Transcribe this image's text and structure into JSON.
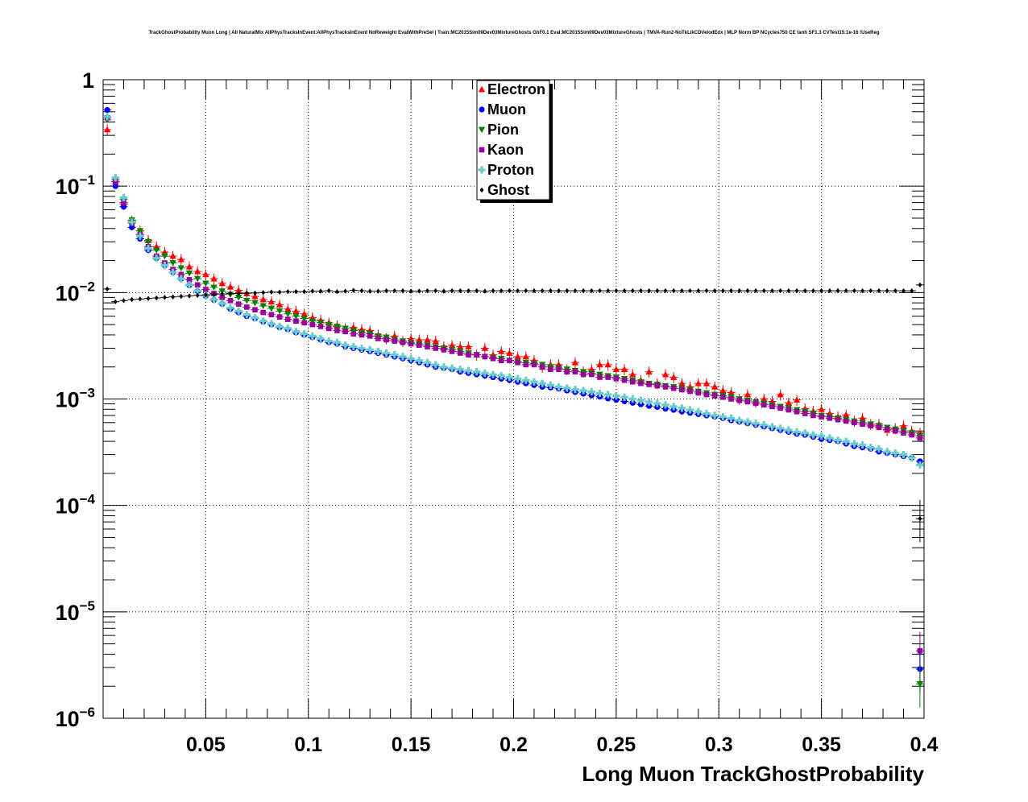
{
  "chart_data": {
    "type": "scatter",
    "title": "TrackGhostProbability Muon Long | All NaturalMix AllPhysTracksInEvent:AllPhysTracksInEvent NoReweight EvalWithPreSel | Train:MC2015Sim09Dev03MixtureGhosts GhF0.1 Eval:MC2015Sim09Dev03MixtureGhosts | TMVA-Run2-NoTkLikCDVelodEdx | MLP Norm BP NCycles750 CE tanh SF1.3 CVTest15:1e-16 !UseReg",
    "xlabel": "Long Muon TrackGhostProbability",
    "ylabel": "",
    "xlim": [
      0.0,
      0.4
    ],
    "ylim": [
      1e-06,
      1
    ],
    "yscale": "log",
    "grid": true,
    "legend_position": "top-center",
    "x_ticks": [
      "0.05",
      "0.1",
      "0.15",
      "0.2",
      "0.25",
      "0.3",
      "0.35",
      "0.4"
    ],
    "y_ticks": [
      {
        "base": "1",
        "exp": ""
      },
      {
        "base": "10",
        "exp": "−1"
      },
      {
        "base": "10",
        "exp": "−2"
      },
      {
        "base": "10",
        "exp": "−3"
      },
      {
        "base": "10",
        "exp": "−4"
      },
      {
        "base": "10",
        "exp": "−5"
      },
      {
        "base": "10",
        "exp": "−6"
      }
    ],
    "bins": {
      "start": 0.0,
      "width": 0.004,
      "count": 100
    },
    "series": [
      {
        "name": "Electron",
        "color": "#ff0000",
        "marker": "triangle-up",
        "values": [
          0.34,
          0.11,
          0.068,
          0.047,
          0.038,
          0.031,
          0.027,
          0.024,
          0.022,
          0.0205,
          0.0175,
          0.0158,
          0.0148,
          0.0135,
          0.0122,
          0.0113,
          0.0105,
          0.0098,
          0.0092,
          0.0086,
          0.0082,
          0.0077,
          0.007,
          0.0067,
          0.0063,
          0.0058,
          0.0055,
          0.0052,
          0.0049,
          0.0046,
          0.0047,
          0.0045,
          0.0044,
          0.004,
          0.0037,
          0.0039,
          0.0035,
          0.0037,
          0.0036,
          0.0036,
          0.0035,
          0.0031,
          0.0032,
          0.0031,
          0.0031,
          0.0026,
          0.003,
          0.0026,
          0.0028,
          0.0027,
          0.0025,
          0.0025,
          0.0023,
          0.002,
          0.0021,
          0.0021,
          0.0019,
          0.0022,
          0.0018,
          0.0019,
          0.0021,
          0.0021,
          0.0019,
          0.0019,
          0.0017,
          0.0015,
          0.0018,
          0.0014,
          0.0017,
          0.0016,
          0.0014,
          0.0013,
          0.0014,
          0.0014,
          0.0013,
          0.0012,
          0.00115,
          0.001,
          0.0011,
          0.00094,
          0.001,
          0.00095,
          0.0011,
          0.00092,
          0.00098,
          0.00081,
          0.00077,
          0.0008,
          0.00073,
          0.00068,
          0.00071,
          0.00062,
          0.00066,
          0.00058,
          0.00058,
          0.00051,
          0.00053,
          0.00056,
          0.0005,
          0.00048
        ]
      },
      {
        "name": "Muon",
        "color": "#0000ff",
        "marker": "circle",
        "values": [
          0.52,
          0.1,
          0.064,
          0.041,
          0.032,
          0.025,
          0.021,
          0.018,
          0.0155,
          0.0135,
          0.0117,
          0.0103,
          0.0093,
          0.0085,
          0.0078,
          0.007,
          0.0065,
          0.006,
          0.0057,
          0.0053,
          0.005,
          0.0047,
          0.0045,
          0.0042,
          0.004,
          0.0038,
          0.0036,
          0.0034,
          0.0033,
          0.0031,
          0.003,
          0.0029,
          0.0028,
          0.0027,
          0.0026,
          0.0025,
          0.0024,
          0.0023,
          0.0022,
          0.0021,
          0.002,
          0.00195,
          0.0019,
          0.0018,
          0.00175,
          0.0017,
          0.00165,
          0.0016,
          0.00155,
          0.0015,
          0.00145,
          0.0014,
          0.00135,
          0.0013,
          0.00128,
          0.00125,
          0.0012,
          0.00116,
          0.00112,
          0.00108,
          0.00105,
          0.00101,
          0.00098,
          0.00095,
          0.00092,
          0.00089,
          0.00086,
          0.00084,
          0.00081,
          0.00079,
          0.00076,
          0.00074,
          0.00072,
          0.0007,
          0.00068,
          0.00066,
          0.00063,
          0.00061,
          0.00059,
          0.00057,
          0.00055,
          0.00053,
          0.00051,
          0.00049,
          0.00047,
          0.00046,
          0.00044,
          0.00042,
          0.00041,
          0.0004,
          0.00038,
          0.00036,
          0.00035,
          0.00034,
          0.00032,
          0.00031,
          0.0003,
          0.00029,
          0.00028,
          0.00026
        ]
      },
      {
        "name": "Pion",
        "color": "#008000",
        "marker": "triangle-down",
        "values": [
          0.42,
          0.115,
          0.075,
          0.048,
          0.038,
          0.03,
          0.025,
          0.022,
          0.019,
          0.017,
          0.0152,
          0.0135,
          0.0122,
          0.0112,
          0.0103,
          0.0096,
          0.009,
          0.0084,
          0.008,
          0.0075,
          0.0071,
          0.0067,
          0.0063,
          0.006,
          0.0057,
          0.0054,
          0.0052,
          0.005,
          0.0048,
          0.0046,
          0.0044,
          0.0042,
          0.0041,
          0.0039,
          0.0038,
          0.0036,
          0.0035,
          0.0034,
          0.0033,
          0.0032,
          0.0031,
          0.003,
          0.0029,
          0.0028,
          0.0027,
          0.0026,
          0.0025,
          0.00245,
          0.0024,
          0.0023,
          0.00225,
          0.0022,
          0.00215,
          0.0021,
          0.002,
          0.00195,
          0.0019,
          0.00185,
          0.0018,
          0.00175,
          0.0017,
          0.00165,
          0.0016,
          0.00155,
          0.0015,
          0.00145,
          0.0014,
          0.00137,
          0.00133,
          0.0013,
          0.00126,
          0.00122,
          0.00118,
          0.00114,
          0.0011,
          0.00107,
          0.00104,
          0.001,
          0.00097,
          0.00094,
          0.00091,
          0.00088,
          0.00085,
          0.00082,
          0.00079,
          0.00076,
          0.00073,
          0.0007,
          0.00068,
          0.00066,
          0.00064,
          0.00062,
          0.0006,
          0.00058,
          0.00056,
          0.00054,
          0.00052,
          0.0005,
          0.00048,
          0.00045
        ]
      },
      {
        "name": "Kaon",
        "color": "#990099",
        "marker": "square",
        "values": [
          0.44,
          0.11,
          0.07,
          0.045,
          0.035,
          0.027,
          0.022,
          0.019,
          0.0165,
          0.0148,
          0.0132,
          0.0118,
          0.0107,
          0.0098,
          0.009,
          0.0084,
          0.0078,
          0.0073,
          0.0069,
          0.0065,
          0.0062,
          0.0059,
          0.0056,
          0.0054,
          0.0052,
          0.005,
          0.0048,
          0.0046,
          0.0044,
          0.0043,
          0.0041,
          0.004,
          0.0039,
          0.0037,
          0.0036,
          0.0035,
          0.0034,
          0.0033,
          0.0032,
          0.0031,
          0.003,
          0.0029,
          0.0028,
          0.0027,
          0.0026,
          0.0026,
          0.0025,
          0.0024,
          0.0023,
          0.0023,
          0.0022,
          0.0021,
          0.0021,
          0.002,
          0.0019,
          0.0019,
          0.0018,
          0.0018,
          0.0017,
          0.0017,
          0.0016,
          0.0016,
          0.00155,
          0.0015,
          0.00145,
          0.0014,
          0.00137,
          0.00133,
          0.0013,
          0.00126,
          0.00122,
          0.00118,
          0.00114,
          0.0011,
          0.00107,
          0.00104,
          0.001,
          0.00097,
          0.00094,
          0.00091,
          0.00088,
          0.00085,
          0.00082,
          0.00079,
          0.00076,
          0.00073,
          0.0007,
          0.00068,
          0.00066,
          0.00064,
          0.00062,
          0.0006,
          0.00058,
          0.00056,
          0.00054,
          0.00052,
          0.0005,
          0.00048,
          0.00046,
          0.00043
        ]
      },
      {
        "name": "Proton",
        "color": "#66cccc",
        "marker": "cross",
        "values": [
          0.45,
          0.12,
          0.078,
          0.046,
          0.034,
          0.026,
          0.021,
          0.018,
          0.0155,
          0.0135,
          0.0118,
          0.0104,
          0.0094,
          0.0086,
          0.0079,
          0.0072,
          0.0067,
          0.0062,
          0.0058,
          0.0054,
          0.0051,
          0.0048,
          0.0046,
          0.0043,
          0.0041,
          0.0039,
          0.0037,
          0.0035,
          0.0034,
          0.0032,
          0.0031,
          0.003,
          0.0029,
          0.0028,
          0.0027,
          0.0026,
          0.0025,
          0.0024,
          0.0023,
          0.0022,
          0.0021,
          0.002,
          0.00195,
          0.0019,
          0.00185,
          0.0018,
          0.00175,
          0.0017,
          0.00165,
          0.0016,
          0.00155,
          0.0015,
          0.00145,
          0.0014,
          0.00135,
          0.0013,
          0.00127,
          0.00123,
          0.0012,
          0.00117,
          0.00113,
          0.0011,
          0.00107,
          0.00104,
          0.001,
          0.00097,
          0.00094,
          0.00091,
          0.00088,
          0.00085,
          0.00082,
          0.00079,
          0.00076,
          0.00073,
          0.0007,
          0.00068,
          0.00066,
          0.00063,
          0.00061,
          0.00059,
          0.00057,
          0.00055,
          0.00053,
          0.00051,
          0.00049,
          0.00048,
          0.00046,
          0.00045,
          0.00043,
          0.00041,
          0.0004,
          0.00038,
          0.00037,
          0.00035,
          0.00034,
          0.00032,
          0.00031,
          0.0003,
          0.00028,
          0.00024
        ]
      },
      {
        "name": "Ghost",
        "color": "#000000",
        "marker": "diamond",
        "values": [
          0.0108,
          0.0082,
          0.0084,
          0.0086,
          0.0087,
          0.0088,
          0.0089,
          0.009,
          0.0091,
          0.0092,
          0.0093,
          0.0094,
          0.0095,
          0.0096,
          0.0097,
          0.0098,
          0.0098,
          0.0099,
          0.0099,
          0.01,
          0.0101,
          0.0101,
          0.0102,
          0.0102,
          0.0102,
          0.0103,
          0.0103,
          0.0104,
          0.0102,
          0.0103,
          0.0105,
          0.0104,
          0.0103,
          0.0103,
          0.0104,
          0.0104,
          0.0104,
          0.0103,
          0.0103,
          0.0104,
          0.0104,
          0.0103,
          0.0104,
          0.0104,
          0.0104,
          0.0104,
          0.0103,
          0.0104,
          0.0104,
          0.0104,
          0.0104,
          0.0104,
          0.0104,
          0.0104,
          0.0104,
          0.0104,
          0.0104,
          0.0104,
          0.0104,
          0.0104,
          0.0104,
          0.0104,
          0.0104,
          0.0104,
          0.0104,
          0.0104,
          0.0104,
          0.0104,
          0.0104,
          0.0104,
          0.0104,
          0.0104,
          0.0104,
          0.0104,
          0.0104,
          0.0104,
          0.0104,
          0.0104,
          0.0104,
          0.0104,
          0.0104,
          0.0104,
          0.0104,
          0.0104,
          0.0104,
          0.0104,
          0.0104,
          0.0104,
          0.0104,
          0.0104,
          0.0104,
          0.0104,
          0.0104,
          0.0104,
          0.0104,
          0.0104,
          0.0104,
          0.0104,
          0.0104,
          0.0118
        ]
      }
    ],
    "last_bin_extra": [
      {
        "name": "Kaon",
        "y": 4.3e-06
      },
      {
        "name": "Muon",
        "y": 2.9e-06
      },
      {
        "name": "Pion",
        "y": 2.1e-06
      },
      {
        "name": "Ghost",
        "y": 7.5e-05
      }
    ]
  }
}
